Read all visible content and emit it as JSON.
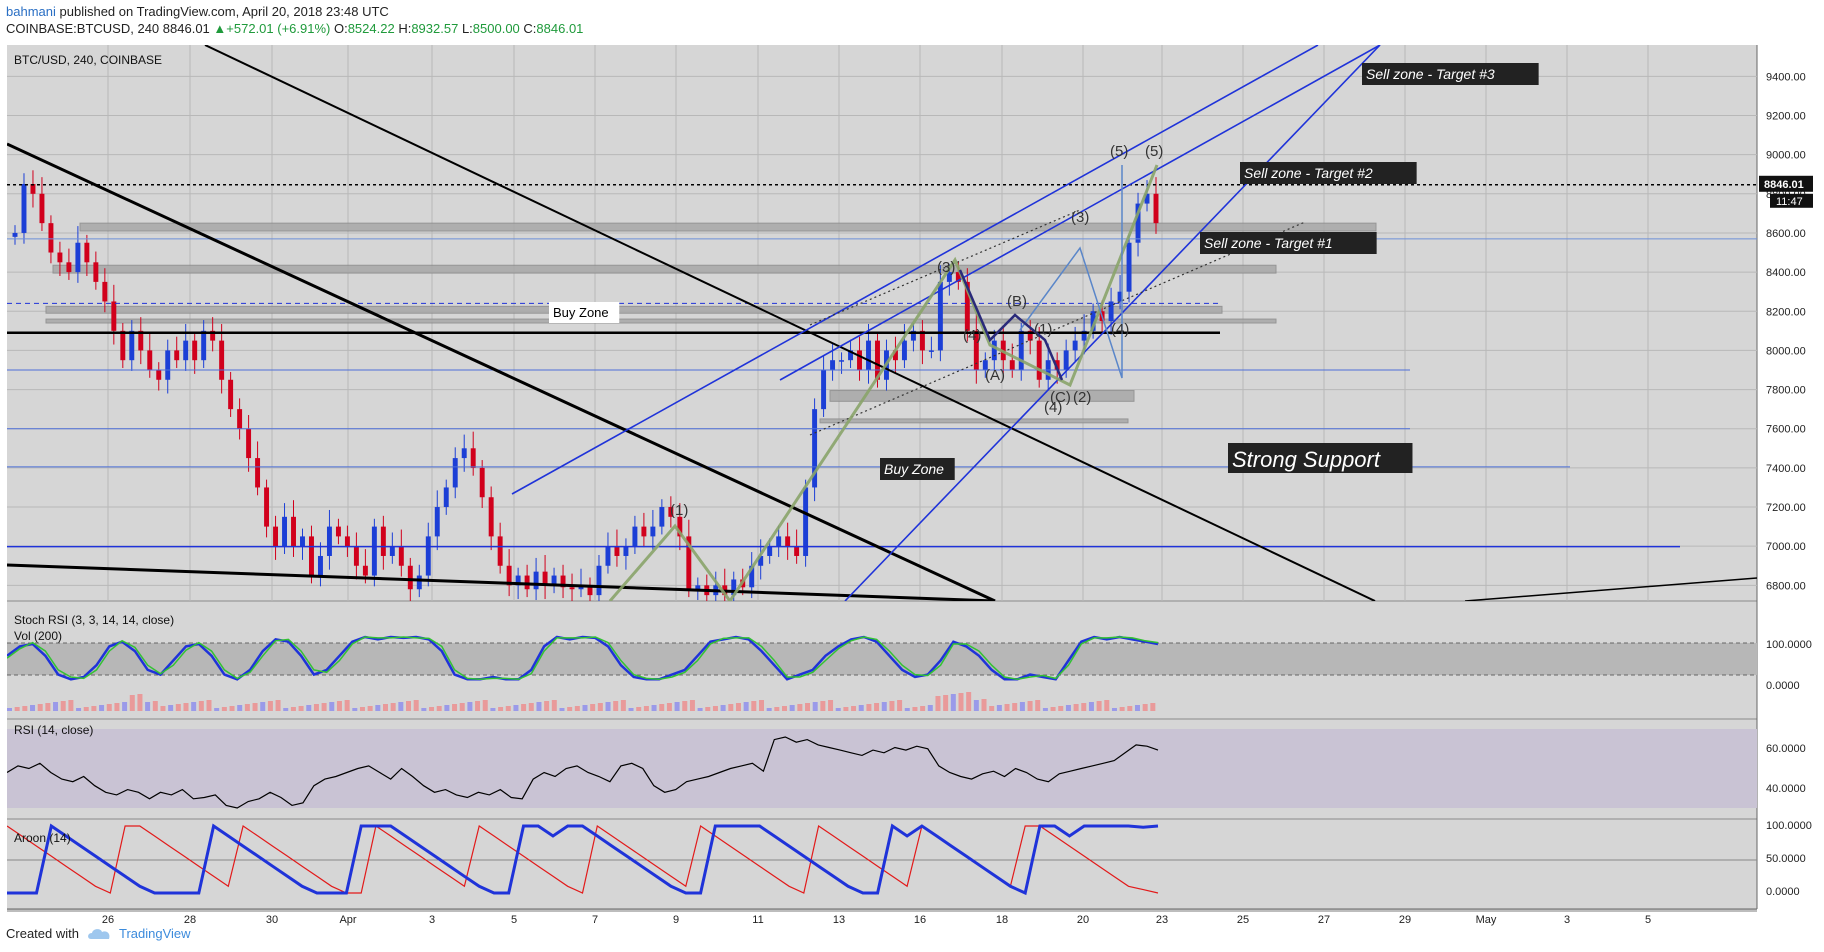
{
  "header": {
    "user": "bahmani",
    "published": "published on TradingView.com, April 20, 2018 23:48 UTC",
    "symbol": "COINBASE:BTCUSD, 240",
    "last": "8846.01",
    "change": "+572.01 (+6.91%)",
    "o": "8524.22",
    "h": "8932.57",
    "l": "8500.00",
    "c": "8846.01"
  },
  "footer": {
    "created": "Created with",
    "brand": "TradingView"
  },
  "colors": {
    "bull": "#1c3fd6",
    "bear": "#d1001c",
    "channel": "#1f33d9",
    "wave": "#8aa46a",
    "bg": "#d6d6d6"
  },
  "chart_data": [
    {
      "type": "candlestick",
      "title": "BTC/USD, 240, COINBASE",
      "ylim": [
        6720,
        9560
      ],
      "y_ticks": [
        "9400.00",
        "9200.00",
        "9000.00",
        "8800.00",
        "8600.00",
        "8400.00",
        "8200.00",
        "8000.00",
        "7800.00",
        "7600.00",
        "7400.00",
        "7200.00",
        "7000.00",
        "6800.00"
      ],
      "x_ticks": [
        "26",
        "28",
        "30",
        "Apr",
        "3",
        "5",
        "7",
        "9",
        "11",
        "13",
        "16",
        "18",
        "20",
        "23",
        "25",
        "27",
        "29",
        "May",
        "3",
        "5"
      ],
      "price_label": "8846.01",
      "time_label": "11:47",
      "close_series": [
        8600,
        8850,
        8800,
        8650,
        8500,
        8450,
        8400,
        8550,
        8450,
        8350,
        8250,
        8100,
        7950,
        8100,
        8000,
        7900,
        7850,
        8000,
        7950,
        8050,
        7950,
        8100,
        8050,
        7850,
        7700,
        7600,
        7450,
        7300,
        7100,
        7000,
        7150,
        7000,
        7050,
        6850,
        6950,
        7100,
        7050,
        7000,
        6900,
        6850,
        7100,
        6950,
        7000,
        6900,
        6780,
        6850,
        7050,
        7200,
        7300,
        7450,
        7500,
        7400,
        7250,
        7050,
        6900,
        6800,
        6850,
        6780,
        6870,
        6800,
        6850,
        6790,
        6780,
        6800,
        6750,
        6900,
        7000,
        6950,
        7000,
        7100,
        7050,
        7100,
        7200,
        7150,
        7050,
        6780,
        6800,
        6750,
        6800,
        6750,
        6830,
        6790,
        6900,
        6950,
        7000,
        7050,
        7000,
        6950,
        7300,
        7700,
        7900,
        7950,
        7950,
        8000,
        7900,
        8050,
        7850,
        8000,
        7950,
        8050,
        8100,
        8000,
        8000,
        8350,
        8400,
        8350,
        8100,
        7900,
        7950,
        8050,
        7950,
        7900,
        8100,
        8050,
        7850,
        7950,
        7900,
        8000,
        8050,
        8100,
        8200,
        8150,
        8250,
        8300,
        8550,
        8750,
        8800,
        8650
      ],
      "annotations": [
        "Sell zone - Target #3",
        "Sell zone - Target #2",
        "Sell zone - Target #1",
        "Buy Zone",
        "Buy Zone",
        "Strong Support",
        "(5)",
        "(5)",
        "(3)",
        "(3)",
        "(B)",
        "(1)",
        "(4)",
        "(4)",
        "(A)",
        "(C)",
        "(2)",
        "(4)",
        "(1)"
      ]
    },
    {
      "type": "line",
      "title": "Stoch RSI (3, 3, 14, 14, close)",
      "y_ticks": [
        "100.0000",
        "0.0000"
      ],
      "series": [
        {
          "values": [
            60,
            80,
            85,
            60,
            20,
            10,
            15,
            40,
            80,
            90,
            70,
            30,
            20,
            50,
            80,
            85,
            60,
            20,
            10,
            30,
            70,
            95,
            90,
            60,
            20,
            30,
            60,
            90,
            100,
            95,
            100,
            98,
            100,
            95,
            70,
            20,
            10,
            10,
            15,
            10,
            10,
            30,
            80,
            100,
            95,
            100,
            98,
            80,
            40,
            15,
            10,
            10,
            20,
            30,
            60,
            90,
            95,
            100,
            95,
            70,
            40,
            10,
            20,
            30,
            60,
            80,
            95,
            100,
            90,
            60,
            30,
            15,
            20,
            50,
            90,
            80,
            60,
            30,
            10,
            10,
            20,
            15,
            10,
            50,
            90,
            100,
            95,
            100,
            95,
            90,
            85
          ]
        },
        {
          "values": [
            55,
            75,
            88,
            70,
            30,
            15,
            12,
            30,
            70,
            92,
            78,
            40,
            22,
            40,
            72,
            88,
            70,
            30,
            12,
            25,
            60,
            92,
            95,
            70,
            30,
            25,
            50,
            85,
            100,
            98,
            98,
            100,
            98,
            97,
            80,
            30,
            12,
            10,
            12,
            12,
            10,
            22,
            70,
            98,
            98,
            98,
            100,
            88,
            50,
            20,
            12,
            10,
            15,
            25,
            50,
            85,
            97,
            98,
            98,
            80,
            50,
            15,
            15,
            25,
            50,
            75,
            92,
            100,
            95,
            70,
            40,
            20,
            18,
            40,
            85,
            85,
            70,
            40,
            15,
            10,
            15,
            18,
            12,
            40,
            85,
            98,
            98,
            100,
            98,
            92,
            88
          ]
        }
      ],
      "vol_label": "Vol (200)"
    },
    {
      "type": "line",
      "title": "RSI (14, close)",
      "y_ticks": [
        "60.0000",
        "40.0000"
      ],
      "series": [
        {
          "values": [
            55,
            60,
            58,
            62,
            55,
            50,
            48,
            52,
            45,
            40,
            38,
            42,
            40,
            35,
            40,
            38,
            42,
            35,
            36,
            38,
            30,
            28,
            33,
            35,
            40,
            36,
            30,
            32,
            45,
            50,
            52,
            55,
            58,
            60,
            55,
            50,
            58,
            52,
            45,
            40,
            42,
            38,
            36,
            40,
            38,
            42,
            36,
            35,
            50,
            55,
            52,
            58,
            60,
            55,
            52,
            48,
            60,
            62,
            58,
            45,
            40,
            42,
            48,
            50,
            52,
            55,
            58,
            60,
            62,
            56,
            80,
            82,
            78,
            80,
            76,
            74,
            72,
            70,
            68,
            72,
            70,
            74,
            72,
            75,
            73,
            60,
            55,
            52,
            50,
            54,
            56,
            52,
            58,
            55,
            50,
            48,
            54,
            56,
            58,
            60,
            62,
            64,
            70,
            76,
            75,
            72
          ]
        }
      ]
    },
    {
      "type": "line",
      "title": "Aroon (14)",
      "y_ticks": [
        "100.0000",
        "50.0000",
        "0.0000"
      ],
      "series": [
        {
          "name": "up",
          "values": [
            0,
            0,
            0,
            100,
            85,
            70,
            55,
            40,
            25,
            10,
            0,
            0,
            0,
            0,
            100,
            85,
            70,
            55,
            40,
            25,
            10,
            0,
            0,
            0,
            100,
            100,
            100,
            85,
            70,
            55,
            40,
            25,
            10,
            0,
            0,
            100,
            100,
            85,
            100,
            100,
            85,
            70,
            55,
            40,
            25,
            10,
            0,
            0,
            100,
            100,
            100,
            100,
            85,
            70,
            55,
            40,
            25,
            10,
            0,
            0,
            100,
            85,
            100,
            85,
            70,
            55,
            40,
            25,
            10,
            0,
            100,
            100,
            85,
            100,
            100,
            100,
            100,
            98,
            100
          ]
        },
        {
          "name": "down",
          "values": [
            100,
            85,
            70,
            55,
            40,
            25,
            10,
            0,
            100,
            100,
            85,
            70,
            55,
            40,
            25,
            10,
            100,
            85,
            70,
            55,
            40,
            25,
            10,
            0,
            0,
            100,
            85,
            70,
            55,
            40,
            25,
            10,
            100,
            85,
            70,
            55,
            40,
            25,
            10,
            0,
            100,
            85,
            70,
            55,
            40,
            25,
            10,
            100,
            85,
            70,
            55,
            40,
            25,
            10,
            0,
            100,
            85,
            70,
            55,
            40,
            25,
            10,
            100,
            85,
            70,
            55,
            40,
            25,
            10,
            100,
            100,
            85,
            70,
            55,
            40,
            25,
            10,
            5,
            0
          ]
        }
      ]
    }
  ]
}
